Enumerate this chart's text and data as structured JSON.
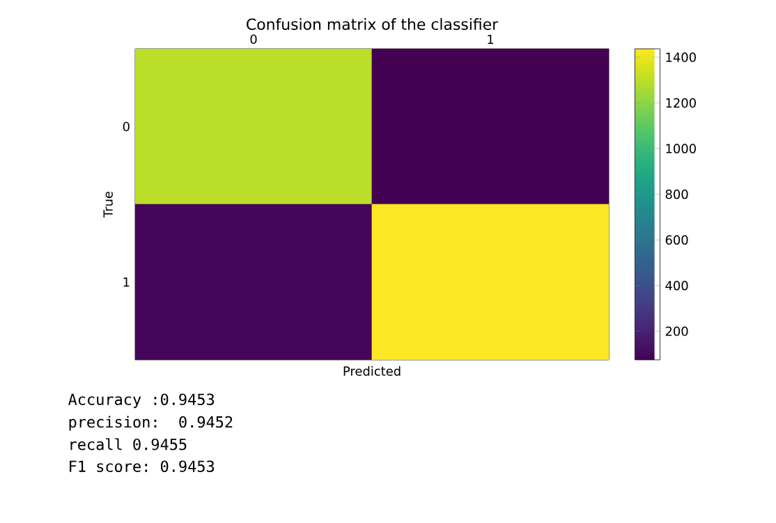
{
  "chart_data": {
    "type": "heatmap",
    "title": "Confusion matrix of the classifier",
    "xlabel": "Predicted",
    "ylabel": "True",
    "categories": [
      "0",
      "1"
    ],
    "y_categories": [
      "0",
      "1"
    ],
    "cells": [
      [
        1300,
        75
      ],
      [
        90,
        1437
      ]
    ],
    "clim": [
      75,
      1437
    ],
    "cticks": [
      200,
      400,
      600,
      800,
      1000,
      1200,
      1400
    ],
    "annotations": [
      "Accuracy :0.9453",
      "precision:  0.9452",
      "recall 0.9455",
      "F1 score: 0.9453"
    ]
  }
}
